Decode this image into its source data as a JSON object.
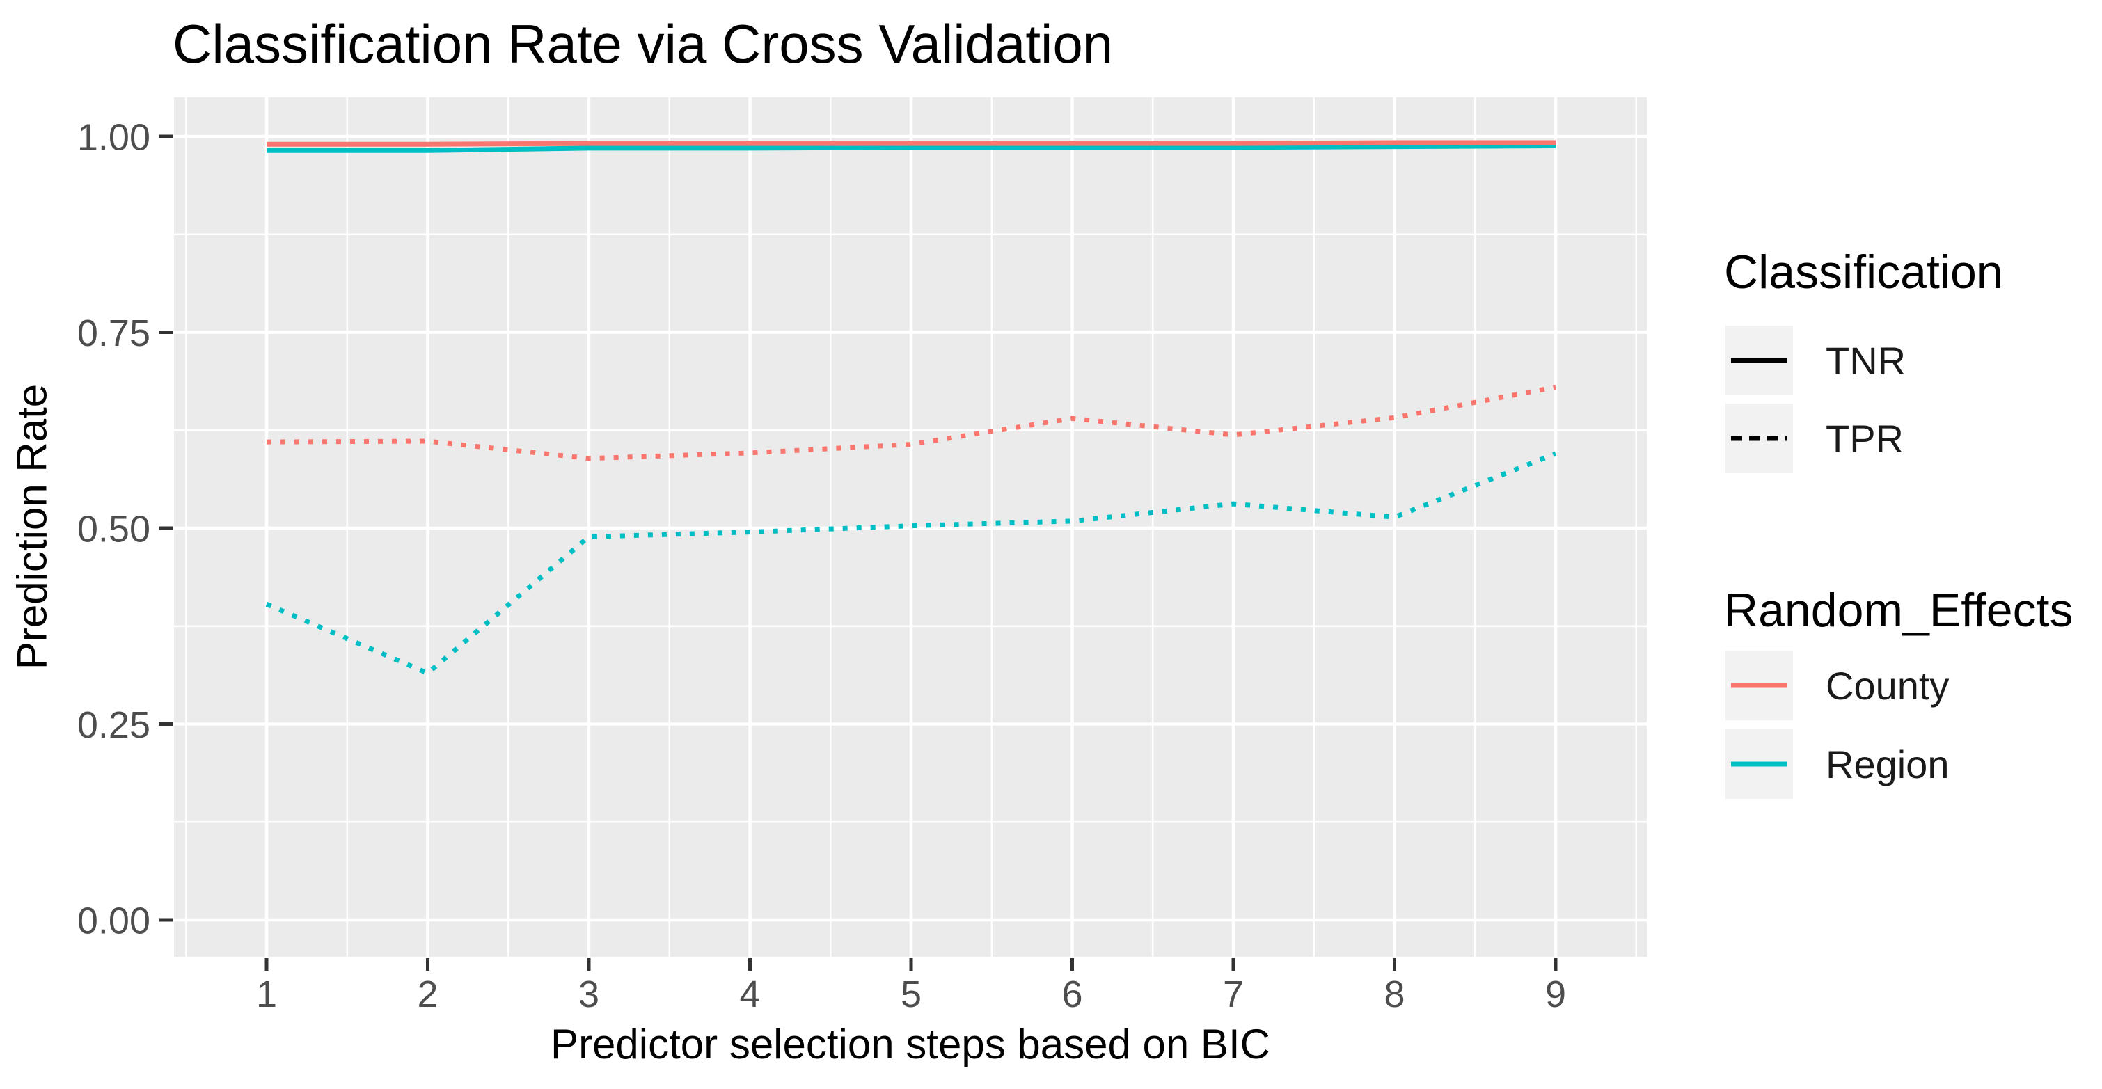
{
  "title": "Classification Rate via Cross Validation",
  "colors": {
    "county": "#F8766D",
    "region": "#00BFC4",
    "legend_key_line": "#000000",
    "panel_bg": "#EBEBEB",
    "grid": "#FFFFFF",
    "key_bg": "#F2F2F2",
    "tick_text": "#4D4D4D",
    "tick_mark": "#333333"
  },
  "chart_data": {
    "type": "line",
    "title": "Classification Rate via Cross Validation",
    "xlabel": "Predictor selection steps based on BIC",
    "ylabel": "Prediction Rate",
    "x": [
      1,
      2,
      3,
      4,
      5,
      6,
      7,
      8,
      9
    ],
    "x_tick_labels": [
      "1",
      "2",
      "3",
      "4",
      "5",
      "6",
      "7",
      "8",
      "9"
    ],
    "y_ticks": [
      1.0,
      0.75,
      0.5,
      0.25,
      0.0
    ],
    "y_tick_labels": [
      "1.00",
      "0.75",
      "0.50",
      "0.25",
      "0.00"
    ],
    "y_minor_ticks": [
      0.875,
      0.625,
      0.375,
      0.125
    ],
    "ylim": [
      0,
      1
    ],
    "grid": true,
    "legend_position": "right",
    "series": [
      {
        "name": "County TNR",
        "classification": "TNR",
        "random_effect": "County",
        "color": "#F8766D",
        "linetype": "solid",
        "values": [
          0.99,
          0.99,
          0.991,
          0.991,
          0.991,
          0.991,
          0.991,
          0.992,
          0.992
        ]
      },
      {
        "name": "Region TNR",
        "classification": "TNR",
        "random_effect": "Region",
        "color": "#00BFC4",
        "linetype": "solid",
        "values": [
          0.982,
          0.982,
          0.985,
          0.985,
          0.986,
          0.986,
          0.986,
          0.987,
          0.988
        ]
      },
      {
        "name": "County TPR",
        "classification": "TPR",
        "random_effect": "County",
        "color": "#F8766D",
        "linetype": "dashed",
        "values": [
          0.61,
          0.611,
          0.589,
          0.596,
          0.607,
          0.64,
          0.619,
          0.641,
          0.68
        ]
      },
      {
        "name": "Region TPR",
        "classification": "TPR",
        "random_effect": "Region",
        "color": "#00BFC4",
        "linetype": "dashed",
        "values": [
          0.403,
          0.315,
          0.489,
          0.495,
          0.503,
          0.509,
          0.531,
          0.514,
          0.595
        ]
      }
    ]
  },
  "legends": [
    {
      "title": "Classification",
      "items": [
        {
          "label": "TNR",
          "linetype": "solid",
          "color": "#000000"
        },
        {
          "label": "TPR",
          "linetype": "dashed",
          "color": "#000000"
        }
      ]
    },
    {
      "title": "Random_Effects",
      "items": [
        {
          "label": "County",
          "linetype": "solid",
          "color": "#F8766D"
        },
        {
          "label": "Region",
          "linetype": "solid",
          "color": "#00BFC4"
        }
      ]
    }
  ]
}
